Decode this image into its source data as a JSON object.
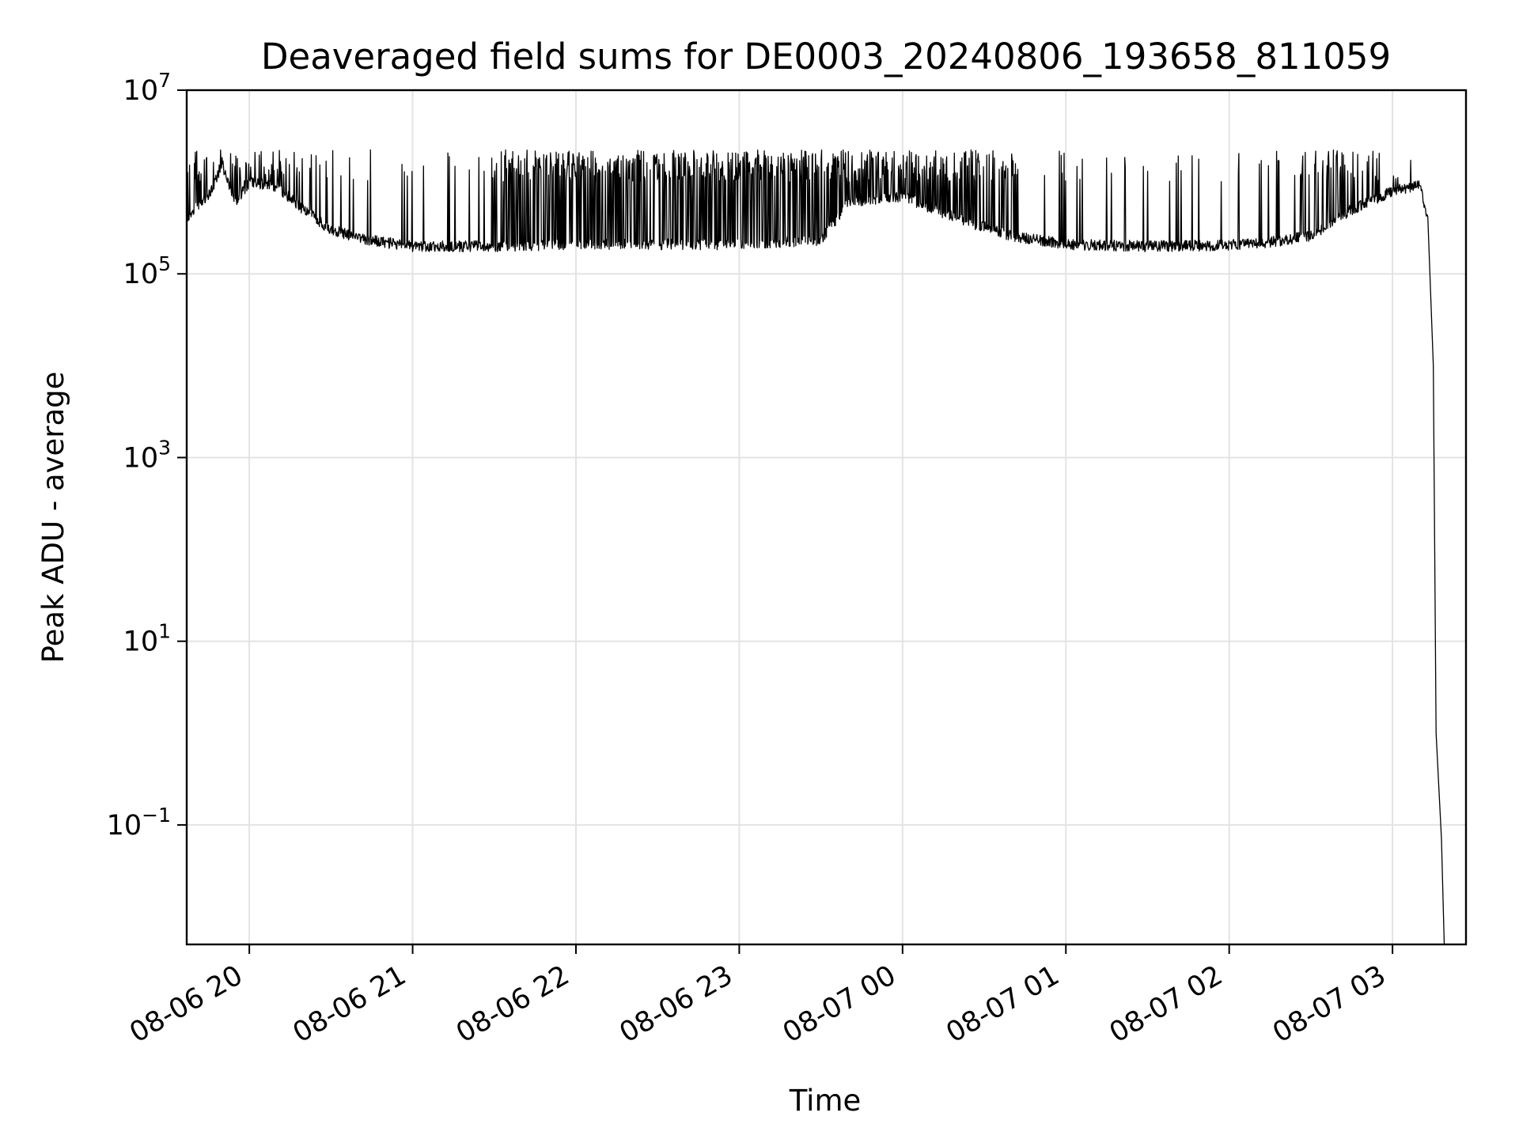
{
  "chart_data": {
    "type": "line",
    "title": "Deaveraged field sums for DE0003_20240806_193658_811059",
    "xlabel": "Time",
    "ylabel": "Peak ADU - average",
    "yscale": "log",
    "ylim": [
      0.005,
      10000000
    ],
    "xlim": [
      "2024-08-06 19:37",
      "2024-08-07 03:27"
    ],
    "grid": true,
    "legend": "none",
    "x_ticks": [
      {
        "t": "2024-08-06 20:00",
        "label": "08-06 20"
      },
      {
        "t": "2024-08-06 21:00",
        "label": "08-06 21"
      },
      {
        "t": "2024-08-06 22:00",
        "label": "08-06 22"
      },
      {
        "t": "2024-08-06 23:00",
        "label": "08-06 23"
      },
      {
        "t": "2024-08-07 00:00",
        "label": "08-07 00"
      },
      {
        "t": "2024-08-07 01:00",
        "label": "08-07 01"
      },
      {
        "t": "2024-08-07 02:00",
        "label": "08-07 02"
      },
      {
        "t": "2024-08-07 03:00",
        "label": "08-07 03"
      }
    ],
    "y_ticks": [
      {
        "value": 10000000,
        "base": "10",
        "exp": "7"
      },
      {
        "value": 100000,
        "base": "10",
        "exp": "5"
      },
      {
        "value": 1000,
        "base": "10",
        "exp": "3"
      },
      {
        "value": 10,
        "base": "10",
        "exp": "1"
      },
      {
        "value": 0.1,
        "base": "10",
        "exp": "−1"
      }
    ],
    "series": [
      {
        "color": "#000000",
        "points": [
          [
            "2024-08-06 19:37",
            420000
          ],
          [
            "2024-08-06 19:45",
            700000
          ],
          [
            "2024-08-06 19:50",
            1500000
          ],
          [
            "2024-08-06 19:55",
            600000
          ],
          [
            "2024-08-06 20:00",
            1000000
          ],
          [
            "2024-08-06 20:10",
            900000
          ],
          [
            "2024-08-06 20:20",
            500000
          ],
          [
            "2024-08-06 20:30",
            300000
          ],
          [
            "2024-08-06 20:45",
            230000
          ],
          [
            "2024-08-06 21:00",
            200000
          ],
          [
            "2024-08-06 21:30",
            200000
          ],
          [
            "2024-08-06 22:00",
            210000
          ],
          [
            "2024-08-06 22:30",
            210000
          ],
          [
            "2024-08-06 23:00",
            210000
          ],
          [
            "2024-08-06 23:30",
            230000
          ],
          [
            "2024-08-06 23:40",
            600000
          ],
          [
            "2024-08-07 00:00",
            700000
          ],
          [
            "2024-08-07 00:20",
            400000
          ],
          [
            "2024-08-07 00:40",
            260000
          ],
          [
            "2024-08-07 01:00",
            210000
          ],
          [
            "2024-08-07 01:30",
            200000
          ],
          [
            "2024-08-07 02:00",
            205000
          ],
          [
            "2024-08-07 02:15",
            220000
          ],
          [
            "2024-08-07 02:30",
            260000
          ],
          [
            "2024-08-07 02:45",
            500000
          ],
          [
            "2024-08-07 03:00",
            800000
          ],
          [
            "2024-08-07 03:10",
            900000
          ],
          [
            "2024-08-07 03:13",
            400000
          ],
          [
            "2024-08-07 03:15",
            10000
          ],
          [
            "2024-08-07 03:16",
            1
          ],
          [
            "2024-08-07 03:18",
            0.07
          ],
          [
            "2024-08-07 03:19",
            0.005
          ]
        ]
      }
    ]
  }
}
